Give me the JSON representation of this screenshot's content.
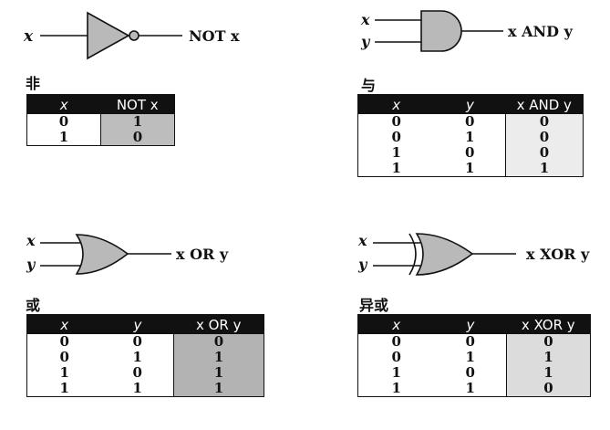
{
  "colors": {
    "gate_fill": "#b9b9b9",
    "header_bg": "#111111",
    "not_output_shade": "#bdbdbd",
    "and_output_shade": "#ececec",
    "or_output_shade": "#b3b3b3",
    "xor_output_shade": "#dcdcdc"
  },
  "gates": {
    "not": {
      "input": "x",
      "output_label": "NOT x",
      "caption": "非",
      "headers": [
        "x",
        "NOT x"
      ],
      "rows": [
        [
          "0",
          "1"
        ],
        [
          "1",
          "0"
        ]
      ]
    },
    "and": {
      "input_x": "x",
      "input_y": "y",
      "output_label": "x AND y",
      "caption": "与",
      "headers": [
        "x",
        "y",
        "x AND y"
      ],
      "rows": [
        [
          "0",
          "0",
          "0"
        ],
        [
          "0",
          "1",
          "0"
        ],
        [
          "1",
          "0",
          "0"
        ],
        [
          "1",
          "1",
          "1"
        ]
      ]
    },
    "or": {
      "input_x": "x",
      "input_y": "y",
      "output_label": "x OR y",
      "caption": "或",
      "headers": [
        "x",
        "y",
        "x OR y"
      ],
      "rows": [
        [
          "0",
          "0",
          "0"
        ],
        [
          "0",
          "1",
          "1"
        ],
        [
          "1",
          "0",
          "1"
        ],
        [
          "1",
          "1",
          "1"
        ]
      ]
    },
    "xor": {
      "input_x": "x",
      "input_y": "y",
      "output_label": "x XOR y",
      "caption": "异或",
      "headers": [
        "x",
        "y",
        "x XOR y"
      ],
      "rows": [
        [
          "0",
          "0",
          "0"
        ],
        [
          "0",
          "1",
          "1"
        ],
        [
          "1",
          "0",
          "1"
        ],
        [
          "1",
          "1",
          "0"
        ]
      ]
    }
  }
}
